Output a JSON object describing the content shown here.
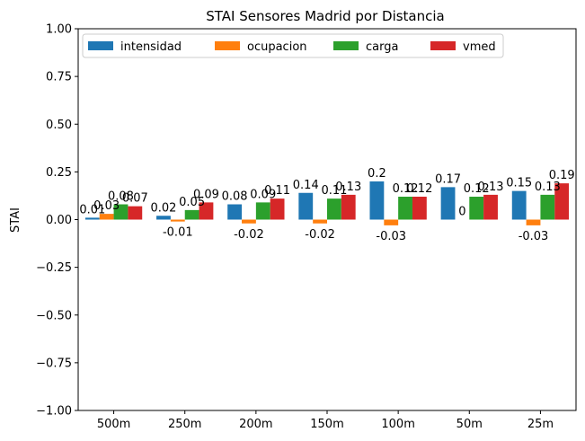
{
  "chart_data": {
    "type": "bar",
    "title": "STAI Sensores Madrid por Distancia",
    "xlabel": "",
    "ylabel": "STAI",
    "ylim": [
      -1.0,
      1.0
    ],
    "yticks": [
      "−1.00",
      "−0.75",
      "−0.50",
      "−0.25",
      "0.00",
      "0.25",
      "0.50",
      "0.75",
      "1.00"
    ],
    "ytick_values": [
      -1.0,
      -0.75,
      -0.5,
      -0.25,
      0.0,
      0.25,
      0.5,
      0.75,
      1.0
    ],
    "categories": [
      "500m",
      "250m",
      "200m",
      "150m",
      "100m",
      "50m",
      "25m"
    ],
    "legend": {
      "placement": "top-left",
      "columns": 4
    },
    "grid": false,
    "series": [
      {
        "name": "intensidad",
        "color": "#1f77b4",
        "values": [
          0.01,
          0.02,
          0.08,
          0.14,
          0.2,
          0.17,
          0.15
        ],
        "labels": [
          "0.01",
          "0.02",
          "0.08",
          "0.14",
          "0.2",
          "0.17",
          "0.15"
        ]
      },
      {
        "name": "ocupacion",
        "color": "#ff7f0e",
        "values": [
          0.03,
          -0.01,
          -0.02,
          -0.02,
          -0.03,
          0,
          -0.03
        ],
        "labels": [
          "0.03",
          "-0.01",
          "-0.02",
          "-0.02",
          "-0.03",
          "0",
          "-0.03"
        ]
      },
      {
        "name": "carga",
        "color": "#2ca02c",
        "values": [
          0.08,
          0.05,
          0.09,
          0.11,
          0.12,
          0.12,
          0.13
        ],
        "labels": [
          "0.08",
          "0.05",
          "0.09",
          "0.11",
          "0.12",
          "0.12",
          "0.13"
        ]
      },
      {
        "name": "vmed",
        "color": "#d62728",
        "values": [
          0.07,
          0.09,
          0.11,
          0.13,
          0.12,
          0.13,
          0.19
        ],
        "labels": [
          "0.07",
          "0.09",
          "0.11",
          "0.13",
          "0.12",
          "0.13",
          "0.19"
        ]
      }
    ]
  }
}
